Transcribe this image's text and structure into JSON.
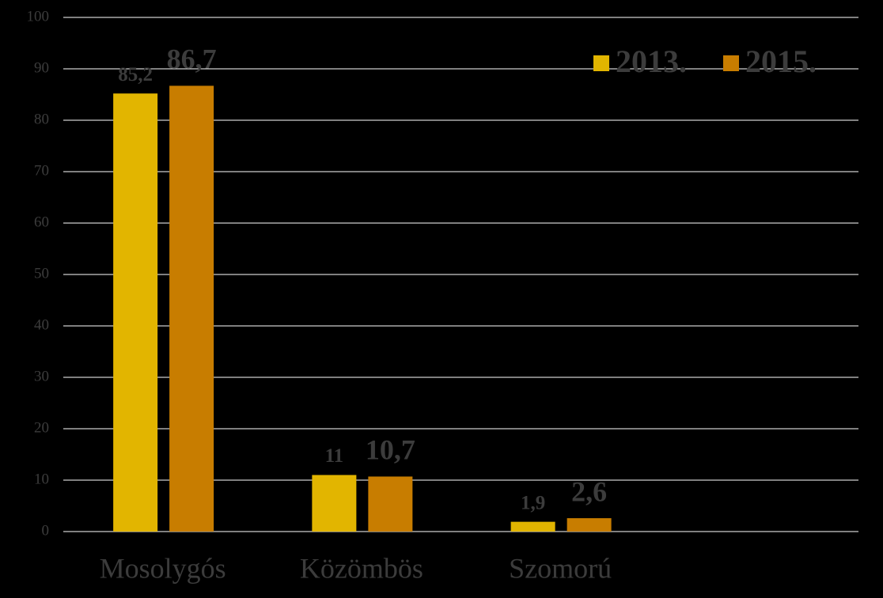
{
  "chart_data": {
    "type": "bar",
    "categories": [
      "Mosolygós",
      "Közömbös",
      "Szomorú",
      null
    ],
    "series": [
      {
        "name": "2013.",
        "color": "#e2b500",
        "values": [
          85.2,
          11,
          1.9,
          null
        ],
        "value_labels": [
          "85,2",
          "11",
          "1,9",
          null
        ]
      },
      {
        "name": "2015.",
        "color": "#c87d00",
        "values": [
          86.7,
          10.7,
          2.6,
          null
        ],
        "value_labels": [
          "86,7",
          "10,7",
          "2,6",
          null
        ]
      }
    ],
    "ylim": [
      0,
      100
    ],
    "yticks": [
      0,
      10,
      20,
      30,
      40,
      50,
      60,
      70,
      80,
      90,
      100
    ],
    "grid": true,
    "legend": "upper right"
  }
}
